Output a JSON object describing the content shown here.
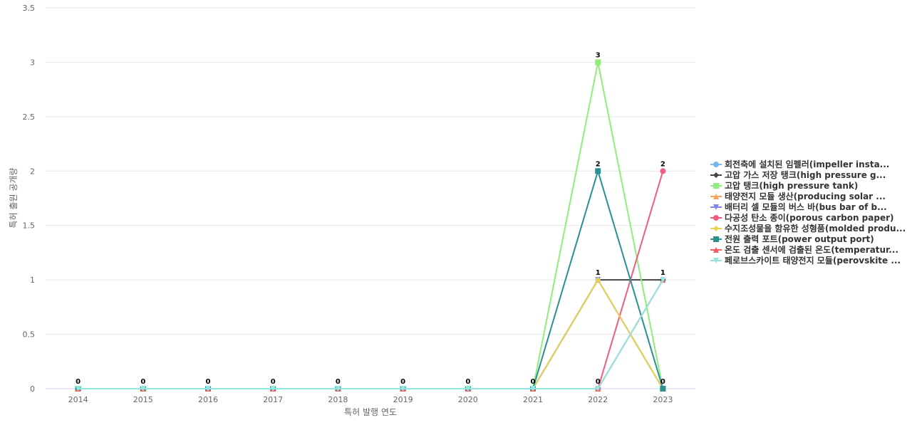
{
  "chart_data": {
    "type": "line",
    "title": "",
    "xlabel": "특허 발행 연도",
    "ylabel": "특허 출원 공개량",
    "x": [
      "2014",
      "2015",
      "2016",
      "2017",
      "2018",
      "2019",
      "2020",
      "2021",
      "2022",
      "2023"
    ],
    "ylim": [
      0,
      3.5
    ],
    "yticks": [
      "0",
      "0.5",
      "1",
      "1.5",
      "2",
      "2.5",
      "3",
      "3.5"
    ],
    "grid": true,
    "legend_position": "right",
    "series": [
      {
        "name": "회전축에 설치된 임펠러(impeller insta...",
        "color": "#7cb5ec",
        "marker": "circle",
        "values": [
          0,
          0,
          0,
          0,
          0,
          0,
          0,
          0,
          0,
          1
        ]
      },
      {
        "name": "고압 가스 저장 탱크(high pressure g...",
        "color": "#434348",
        "marker": "diamond",
        "values": [
          0,
          0,
          0,
          0,
          0,
          0,
          0,
          0,
          1,
          1
        ]
      },
      {
        "name": "고압 탱크(high pressure tank)",
        "color": "#90ed7d",
        "marker": "square",
        "values": [
          0,
          0,
          0,
          0,
          0,
          0,
          0,
          0,
          3,
          0
        ]
      },
      {
        "name": "태양전지 모듈 생산(producing solar ...",
        "color": "#f7a35c",
        "marker": "triangle",
        "values": [
          0,
          0,
          0,
          0,
          0,
          0,
          0,
          0,
          1,
          0
        ]
      },
      {
        "name": "배터리 셀 모듈의 버스 바(bus bar of b...",
        "color": "#8085e9",
        "marker": "triangle-down",
        "values": [
          0,
          0,
          0,
          0,
          0,
          0,
          0,
          0,
          1,
          0
        ]
      },
      {
        "name": "다공성 탄소 종이(porous carbon paper)",
        "color": "#f15c80",
        "marker": "circle",
        "values": [
          0,
          0,
          0,
          0,
          0,
          0,
          0,
          0,
          0,
          2
        ]
      },
      {
        "name": "수지조성물을 함유한 성형품(molded produ...",
        "color": "#e4d354",
        "marker": "diamond",
        "values": [
          0,
          0,
          0,
          0,
          0,
          0,
          0,
          0,
          1,
          0
        ]
      },
      {
        "name": "전원 출력 포트(power output port)",
        "color": "#2b908f",
        "marker": "square",
        "values": [
          0,
          0,
          0,
          0,
          0,
          0,
          0,
          0,
          2,
          0
        ]
      },
      {
        "name": "온도 검출 센서에 검출된 온도(temperatur...",
        "color": "#f45b5b",
        "marker": "triangle",
        "values": [
          0,
          0,
          0,
          0,
          0,
          0,
          0,
          0,
          0,
          1
        ]
      },
      {
        "name": "페로브스카이트 태양전지 모듈(perovskite ...",
        "color": "#91e8e1",
        "marker": "triangle-down",
        "values": [
          0,
          0,
          0,
          0,
          0,
          0,
          0,
          0,
          0,
          1
        ]
      }
    ],
    "data_labels": [
      {
        "x": "2014",
        "text": "0"
      },
      {
        "x": "2015",
        "text": "0"
      },
      {
        "x": "2016",
        "text": "0"
      },
      {
        "x": "2017",
        "text": "0"
      },
      {
        "x": "2018",
        "text": "0"
      },
      {
        "x": "2019",
        "text": "0"
      },
      {
        "x": "2020",
        "text": "0"
      },
      {
        "x": "2021",
        "text": "0"
      },
      {
        "x": "2022",
        "y": 3,
        "text": "3"
      },
      {
        "x": "2022",
        "y": 2,
        "text": "2"
      },
      {
        "x": "2022",
        "y": 1,
        "text": "1"
      },
      {
        "x": "2022",
        "y": 0,
        "text": "0"
      },
      {
        "x": "2023",
        "y": 2,
        "text": "2"
      },
      {
        "x": "2023",
        "y": 1,
        "text": "1"
      },
      {
        "x": "2023",
        "y": 0,
        "text": "0"
      }
    ]
  }
}
